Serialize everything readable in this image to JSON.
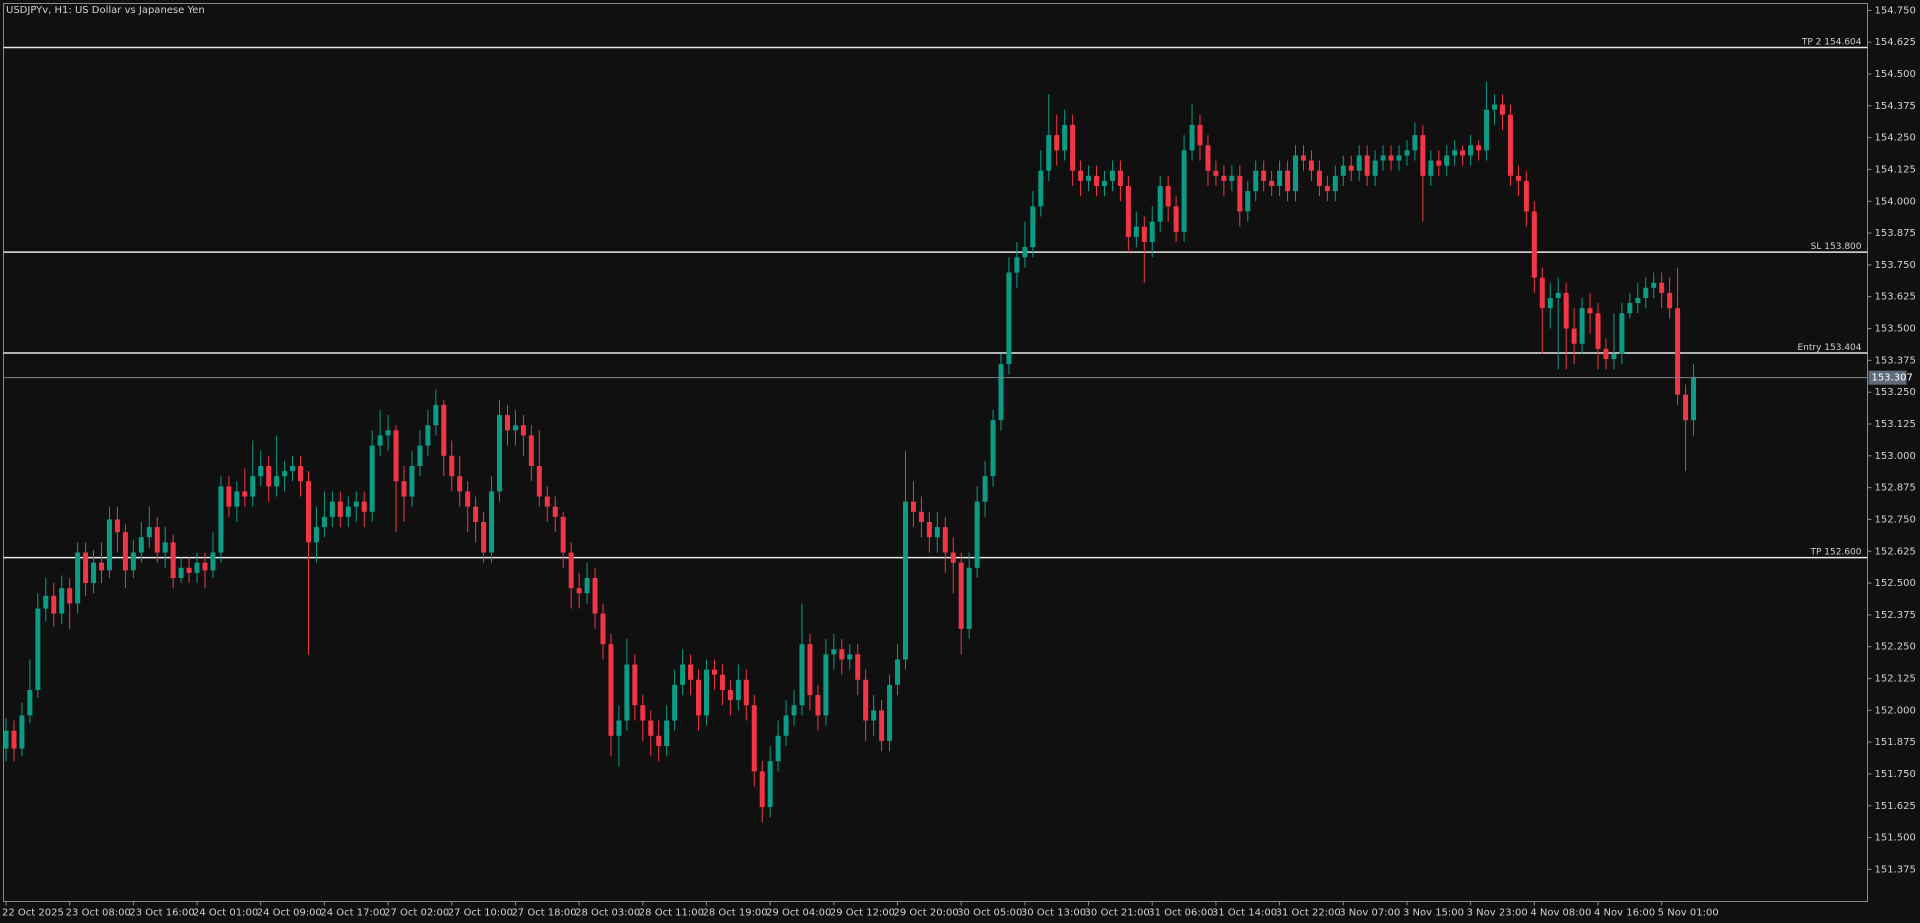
{
  "chart_data": {
    "type": "candlestick",
    "title": "USDJPYv, H1:  US Dollar vs Japanese Yen",
    "up_color": "#0c9c85",
    "down_color": "#f23645",
    "categories": [
      "22 Oct 2025",
      null,
      null,
      null,
      null,
      null,
      null,
      null,
      "23 Oct 08:00",
      null,
      null,
      null,
      null,
      null,
      null,
      null,
      "23 Oct 16:00",
      null,
      null,
      null,
      null,
      null,
      null,
      null,
      "24 Oct 01:00",
      null,
      null,
      null,
      null,
      null,
      null,
      null,
      "24 Oct 09:00",
      null,
      null,
      null,
      null,
      null,
      null,
      null,
      "24 Oct 17:00",
      null,
      null,
      null,
      null,
      null,
      null,
      null,
      "27 Oct 02:00",
      null,
      null,
      null,
      null,
      null,
      null,
      null,
      "27 Oct 10:00",
      null,
      null,
      null,
      null,
      null,
      null,
      null,
      "27 Oct 18:00",
      null,
      null,
      null,
      null,
      null,
      null,
      null,
      "28 Oct 03:00",
      null,
      null,
      null,
      null,
      null,
      null,
      null,
      "28 Oct 11:00",
      null,
      null,
      null,
      null,
      null,
      null,
      null,
      "28 Oct 19:00",
      null,
      null,
      null,
      null,
      null,
      null,
      null,
      "29 Oct 04:00",
      null,
      null,
      null,
      null,
      null,
      null,
      null,
      "29 Oct 12:00",
      null,
      null,
      null,
      null,
      null,
      null,
      null,
      "29 Oct 20:00",
      null,
      null,
      null,
      null,
      null,
      null,
      null,
      "30 Oct 05:00",
      null,
      null,
      null,
      null,
      null,
      null,
      null,
      "30 Oct 13:00",
      null,
      null,
      null,
      null,
      null,
      null,
      null,
      "30 Oct 21:00",
      null,
      null,
      null,
      null,
      null,
      null,
      null,
      "31 Oct 06:00",
      null,
      null,
      null,
      null,
      null,
      null,
      null,
      "31 Oct 14:00",
      null,
      null,
      null,
      null,
      null,
      null,
      null,
      "31 Oct 22:00",
      null,
      null,
      null,
      null,
      null,
      null,
      null,
      "3 Nov 07:00",
      null,
      null,
      null,
      null,
      null,
      null,
      null,
      "3 Nov 15:00",
      null,
      null,
      null,
      null,
      null,
      null,
      null,
      "3 Nov 23:00",
      null,
      null,
      null,
      null,
      null,
      null,
      null,
      "4 Nov 08:00",
      null,
      null,
      null,
      null,
      null,
      null,
      null,
      "4 Nov 16:00",
      null,
      null,
      null,
      null,
      null,
      null,
      null,
      "5 Nov 01:00",
      null,
      null,
      null,
      null
    ],
    "open": [
      151.85,
      151.92,
      151.85,
      151.98,
      152.08,
      152.4,
      152.45,
      152.38,
      152.48,
      152.42,
      152.62,
      152.5,
      152.58,
      152.55,
      152.75,
      152.7,
      152.55,
      152.62,
      152.68,
      152.72,
      152.62,
      152.66,
      152.52,
      152.56,
      152.54,
      152.58,
      152.55,
      152.62,
      152.88,
      152.8,
      152.86,
      152.84,
      152.92,
      152.96,
      152.88,
      152.92,
      152.94,
      152.96,
      152.9,
      152.66,
      152.72,
      152.76,
      152.82,
      152.76,
      152.8,
      152.82,
      152.78,
      153.04,
      153.08,
      153.1,
      152.9,
      152.84,
      152.96,
      153.04,
      153.12,
      153.2,
      153.0,
      152.92,
      152.86,
      152.8,
      152.74,
      152.62,
      152.86,
      153.16,
      153.1,
      153.12,
      153.08,
      152.96,
      152.84,
      152.8,
      152.76,
      152.62,
      152.48,
      152.46,
      152.52,
      152.38,
      152.26,
      151.9,
      151.96,
      152.18,
      152.02,
      151.96,
      151.9,
      151.86,
      151.96,
      152.1,
      152.18,
      152.12,
      151.98,
      152.16,
      152.14,
      152.08,
      152.04,
      152.12,
      152.02,
      151.76,
      151.62,
      151.8,
      151.9,
      151.98,
      152.02,
      152.26,
      152.06,
      151.98,
      152.22,
      152.24,
      152.2,
      152.22,
      152.12,
      151.96,
      152.0,
      151.88,
      152.1,
      152.2,
      152.82,
      152.78,
      152.74,
      152.68,
      152.72,
      152.62,
      152.58,
      152.32,
      152.56,
      152.82,
      152.92,
      153.14,
      153.36,
      153.72,
      153.78,
      153.82,
      153.98,
      154.12,
      154.26,
      154.2,
      154.3,
      154.12,
      154.08,
      154.1,
      154.06,
      154.08,
      154.12,
      154.06,
      153.86,
      153.9,
      153.84,
      153.92,
      154.06,
      153.98,
      153.88,
      154.2,
      154.3,
      154.22,
      154.12,
      154.1,
      154.08,
      154.1,
      153.96,
      154.04,
      154.12,
      154.08,
      154.06,
      154.12,
      154.04,
      154.18,
      154.16,
      154.12,
      154.06,
      154.04,
      154.1,
      154.14,
      154.12,
      154.18,
      154.1,
      154.16,
      154.18,
      154.16,
      154.18,
      154.2,
      154.26,
      154.1,
      154.16,
      154.14,
      154.18,
      154.2,
      154.18,
      154.22,
      154.2,
      154.36,
      154.38,
      154.34,
      154.1,
      154.08,
      153.96,
      153.7,
      153.58,
      153.62,
      153.64,
      153.5,
      153.44,
      153.58,
      153.56,
      153.42,
      153.38,
      153.4,
      153.56,
      153.6,
      153.62,
      153.66,
      153.68,
      153.64,
      153.58,
      153.24,
      153.14
    ],
    "high": [
      151.97,
      151.96,
      152.03,
      152.2,
      152.46,
      152.52,
      152.5,
      152.53,
      152.52,
      152.66,
      152.66,
      152.63,
      152.66,
      152.8,
      152.8,
      152.73,
      152.67,
      152.74,
      152.8,
      152.76,
      152.72,
      152.69,
      152.6,
      152.6,
      152.62,
      152.62,
      152.7,
      152.92,
      152.92,
      152.9,
      152.95,
      153.06,
      153.02,
      153.0,
      153.08,
      152.98,
      153.0,
      153.0,
      152.94,
      152.8,
      152.86,
      152.86,
      152.86,
      152.84,
      152.86,
      152.86,
      153.1,
      153.18,
      153.16,
      153.12,
      152.96,
      153.02,
      153.1,
      153.18,
      153.26,
      153.22,
      153.06,
      153.0,
      152.9,
      152.84,
      152.78,
      152.92,
      153.22,
      153.2,
      153.18,
      153.16,
      153.12,
      153.1,
      152.88,
      152.84,
      152.78,
      152.66,
      152.54,
      152.58,
      152.56,
      152.42,
      152.3,
      152.02,
      152.28,
      152.22,
      152.06,
      152.0,
      151.96,
      152.02,
      152.16,
      152.24,
      152.22,
      152.16,
      152.2,
      152.2,
      152.18,
      152.12,
      152.18,
      152.16,
      152.06,
      151.8,
      151.86,
      151.96,
      152.04,
      152.08,
      152.42,
      152.3,
      152.1,
      152.28,
      152.3,
      152.28,
      152.26,
      152.26,
      152.16,
      152.06,
      152.04,
      152.14,
      152.26,
      153.02,
      152.9,
      152.84,
      152.78,
      152.78,
      152.76,
      152.68,
      152.62,
      152.62,
      152.88,
      152.98,
      153.18,
      153.4,
      153.78,
      153.84,
      153.92,
      154.04,
      154.2,
      154.42,
      154.34,
      154.36,
      154.34,
      154.16,
      154.14,
      154.14,
      154.12,
      154.16,
      154.16,
      154.1,
      153.96,
      153.94,
      153.98,
      154.1,
      154.1,
      154.02,
      154.26,
      154.38,
      154.34,
      154.26,
      154.16,
      154.14,
      154.14,
      154.14,
      154.08,
      154.16,
      154.16,
      154.12,
      154.16,
      154.16,
      154.22,
      154.22,
      154.2,
      154.16,
      154.1,
      154.14,
      154.18,
      154.18,
      154.22,
      154.22,
      154.2,
      154.22,
      154.22,
      154.22,
      154.24,
      154.31,
      154.3,
      154.2,
      154.2,
      154.22,
      154.24,
      154.22,
      154.26,
      154.24,
      154.47,
      154.42,
      154.42,
      154.38,
      154.14,
      154.12,
      154.0,
      153.74,
      153.68,
      153.7,
      153.68,
      153.58,
      153.62,
      153.64,
      153.6,
      153.46,
      153.56,
      153.6,
      153.64,
      153.68,
      153.7,
      153.72,
      153.72,
      153.7,
      153.74,
      153.28,
      153.36
    ],
    "low": [
      151.8,
      151.8,
      151.82,
      151.95,
      152.05,
      152.35,
      152.33,
      152.34,
      152.32,
      152.38,
      152.45,
      152.46,
      152.5,
      152.52,
      152.62,
      152.48,
      152.52,
      152.58,
      152.64,
      152.58,
      152.56,
      152.48,
      152.5,
      152.5,
      152.5,
      152.48,
      152.52,
      152.58,
      152.76,
      152.74,
      152.8,
      152.8,
      152.88,
      152.82,
      152.84,
      152.86,
      152.9,
      152.84,
      152.22,
      152.58,
      152.68,
      152.72,
      152.72,
      152.72,
      152.74,
      152.72,
      152.74,
      153.0,
      153.02,
      152.7,
      152.74,
      152.8,
      152.92,
      153.0,
      153.08,
      152.92,
      152.86,
      152.8,
      152.7,
      152.66,
      152.58,
      152.58,
      152.82,
      153.04,
      153.04,
      153.0,
      152.9,
      152.8,
      152.74,
      152.7,
      152.56,
      152.4,
      152.4,
      152.42,
      152.32,
      152.2,
      151.82,
      151.78,
      151.92,
      151.96,
      151.88,
      151.82,
      151.8,
      151.82,
      151.92,
      152.06,
      152.06,
      151.92,
      151.94,
      152.08,
      152.02,
      151.98,
      152.0,
      151.96,
      151.7,
      151.56,
      151.58,
      151.76,
      151.86,
      151.94,
      151.98,
      152.0,
      151.92,
      151.94,
      152.16,
      152.14,
      152.16,
      152.06,
      151.88,
      151.9,
      151.84,
      151.84,
      152.06,
      152.16,
      152.72,
      152.68,
      152.62,
      152.62,
      152.54,
      152.46,
      152.22,
      152.28,
      152.52,
      152.76,
      152.88,
      153.1,
      153.32,
      153.66,
      153.74,
      153.78,
      153.94,
      154.08,
      154.14,
      154.16,
      154.06,
      154.02,
      154.04,
      154.02,
      154.02,
      154.04,
      154.0,
      153.8,
      153.82,
      153.68,
      153.78,
      153.88,
      153.92,
      153.84,
      153.84,
      154.16,
      154.16,
      154.06,
      154.06,
      154.02,
      154.04,
      153.9,
      153.92,
      154.0,
      154.04,
      154.02,
      154.02,
      154.0,
      154.0,
      154.12,
      154.08,
      154.02,
      154.0,
      154.0,
      154.06,
      154.08,
      154.08,
      154.06,
      154.06,
      154.12,
      154.12,
      154.12,
      154.14,
      154.16,
      153.92,
      154.06,
      154.1,
      154.1,
      154.14,
      154.14,
      154.14,
      154.16,
      154.16,
      154.3,
      154.28,
      154.06,
      154.02,
      153.9,
      153.64,
      153.4,
      153.5,
      153.34,
      153.34,
      153.36,
      153.4,
      153.48,
      153.34,
      153.34,
      153.34,
      153.36,
      153.54,
      153.56,
      153.58,
      153.62,
      153.58,
      153.54,
      153.2,
      152.94,
      153.08
    ],
    "close": [
      151.92,
      151.85,
      151.98,
      152.08,
      152.4,
      152.45,
      152.38,
      152.48,
      152.42,
      152.62,
      152.5,
      152.58,
      152.55,
      152.75,
      152.7,
      152.55,
      152.62,
      152.68,
      152.72,
      152.62,
      152.66,
      152.52,
      152.56,
      152.54,
      152.58,
      152.55,
      152.62,
      152.88,
      152.8,
      152.86,
      152.84,
      152.92,
      152.96,
      152.88,
      152.92,
      152.94,
      152.96,
      152.9,
      152.66,
      152.72,
      152.76,
      152.82,
      152.76,
      152.8,
      152.82,
      152.78,
      153.04,
      153.08,
      153.1,
      152.9,
      152.84,
      152.96,
      153.04,
      153.12,
      153.2,
      153.0,
      152.92,
      152.86,
      152.8,
      152.74,
      152.62,
      152.86,
      153.16,
      153.1,
      153.12,
      153.08,
      152.96,
      152.84,
      152.8,
      152.76,
      152.62,
      152.48,
      152.46,
      152.52,
      152.38,
      152.26,
      151.9,
      151.96,
      152.18,
      152.02,
      151.96,
      151.9,
      151.86,
      151.96,
      152.1,
      152.18,
      152.12,
      151.98,
      152.16,
      152.14,
      152.08,
      152.04,
      152.12,
      152.02,
      151.76,
      151.62,
      151.8,
      151.9,
      151.98,
      152.02,
      152.26,
      152.06,
      151.98,
      152.22,
      152.24,
      152.2,
      152.22,
      152.12,
      151.96,
      152.0,
      151.88,
      152.1,
      152.2,
      152.82,
      152.78,
      152.74,
      152.68,
      152.72,
      152.62,
      152.58,
      152.32,
      152.56,
      152.82,
      152.92,
      153.14,
      153.36,
      153.72,
      153.78,
      153.82,
      153.98,
      154.12,
      154.26,
      154.2,
      154.3,
      154.12,
      154.08,
      154.1,
      154.06,
      154.08,
      154.12,
      154.06,
      153.86,
      153.9,
      153.84,
      153.92,
      154.06,
      153.98,
      153.88,
      154.2,
      154.3,
      154.22,
      154.12,
      154.1,
      154.08,
      154.1,
      153.96,
      154.04,
      154.12,
      154.08,
      154.06,
      154.12,
      154.04,
      154.18,
      154.16,
      154.12,
      154.06,
      154.04,
      154.1,
      154.14,
      154.12,
      154.18,
      154.1,
      154.16,
      154.18,
      154.16,
      154.18,
      154.2,
      154.26,
      154.1,
      154.16,
      154.14,
      154.18,
      154.2,
      154.18,
      154.22,
      154.2,
      154.36,
      154.38,
      154.34,
      154.1,
      154.08,
      153.96,
      153.7,
      153.58,
      153.62,
      153.64,
      153.5,
      153.44,
      153.58,
      153.56,
      153.42,
      153.38,
      153.4,
      153.56,
      153.6,
      153.62,
      153.66,
      153.68,
      153.64,
      153.58,
      153.24,
      153.14,
      153.31
    ],
    "ylim": [
      151.249,
      154.777
    ],
    "yticks": [
      151.375,
      {
        "value": 151.5,
        "label": "151.500"
      },
      151.625,
      {
        "value": 151.75,
        "label": "151.750"
      },
      151.875,
      {
        "value": 152,
        "label": "152.000"
      },
      152.125,
      {
        "value": 152.25,
        "label": "152.250"
      },
      152.375,
      {
        "value": 152.5,
        "label": "152.500"
      },
      152.625,
      {
        "value": 152.75,
        "label": "152.750"
      },
      152.875,
      {
        "value": 153,
        "label": "153.000"
      },
      153.125,
      {
        "value": 153.25,
        "label": "153.250"
      },
      153.375,
      {
        "value": 153.5,
        "label": "153.500"
      },
      153.625,
      {
        "value": 153.75,
        "label": "153.750"
      },
      153.875,
      {
        "value": 154,
        "label": "154.000"
      },
      154.125,
      {
        "value": 154.25,
        "label": "154.250"
      },
      154.375,
      {
        "value": 154.5,
        "label": "154.500"
      },
      154.625,
      {
        "value": 154.75,
        "label": "154.750"
      }
    ],
    "levels": [
      {
        "label": "TP 2",
        "value": 154.604
      },
      {
        "label": "SL",
        "value": 153.8,
        "value_label": "153.800"
      },
      {
        "label": "Entry",
        "value": 153.404
      },
      {
        "label": "TP",
        "value": 152.6,
        "value_label": "152.600"
      }
    ],
    "current_price": 153.307
  }
}
